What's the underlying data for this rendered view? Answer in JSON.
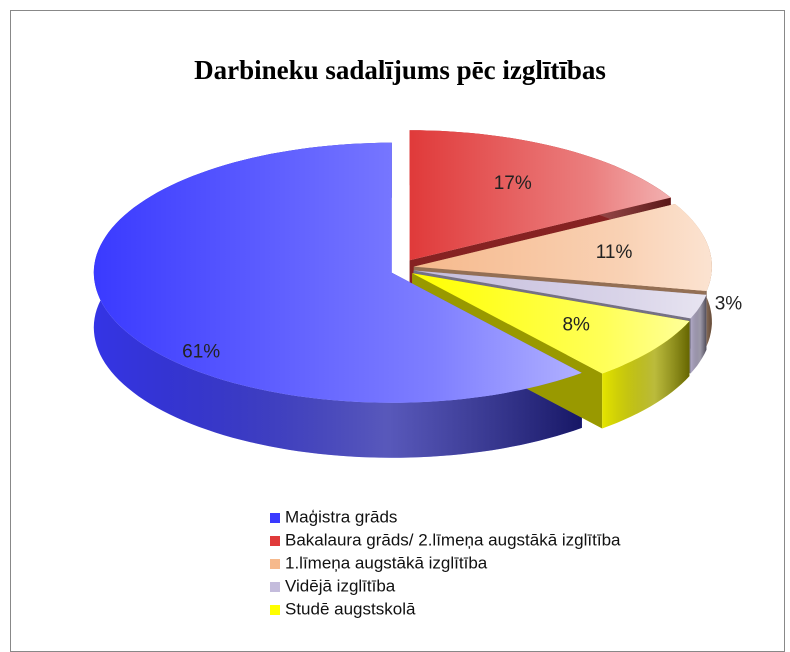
{
  "chart_data": {
    "type": "pie3d",
    "title": "Darbineku sadalījums pēc izglītības",
    "categories": [
      "Maģistra grāds",
      "Bakalaura grāds/ 2.līmeņa augstākā izglītība",
      "1.līmeņa augstākā izglītība",
      "Vidējā izglītība",
      "Studē augstskolā"
    ],
    "values": [
      61,
      17,
      11,
      3,
      8
    ],
    "value_labels": [
      "61%",
      "17%",
      "11%",
      "3%",
      "8%"
    ],
    "colors": [
      "#3a3aff",
      "#e03a3a",
      "#f6b98c",
      "#c4bcdc",
      "#ffff00"
    ],
    "legend": "bottom"
  }
}
